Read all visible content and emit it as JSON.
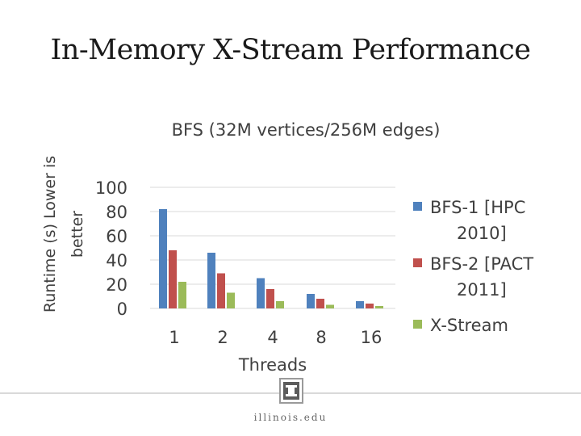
{
  "slide": {
    "title": "In-Memory X-Stream Performance",
    "footer_url": "illinois.edu"
  },
  "colors": {
    "series1": "#4f81bd",
    "series2": "#c0504d",
    "series3": "#9bbb59",
    "grid": "#d9d9d9",
    "text": "#404040"
  },
  "chart_data": {
    "type": "bar",
    "title": "BFS (32M vertices/256M edges)",
    "xlabel": "Threads",
    "ylabel": "Runtime (s) Lower is better",
    "categories": [
      "1",
      "2",
      "4",
      "8",
      "16"
    ],
    "yticks": [
      "100",
      "80",
      "60",
      "40",
      "20",
      "0"
    ],
    "ylim": [
      0,
      100
    ],
    "grid": true,
    "legend": "right",
    "series": [
      {
        "name": "BFS-1 [HPC 2010]",
        "values": [
          82,
          46,
          25,
          12,
          6
        ]
      },
      {
        "name": "BFS-2 [PACT 2011]",
        "values": [
          48,
          29,
          16,
          8,
          4
        ]
      },
      {
        "name": "X-Stream",
        "values": [
          22,
          13,
          6,
          3,
          2
        ]
      }
    ]
  }
}
